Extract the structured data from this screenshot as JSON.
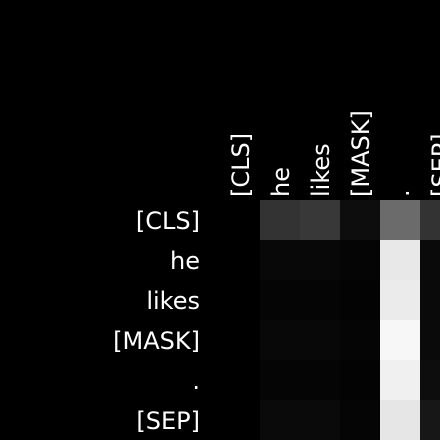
{
  "chart_data": {
    "type": "heatmap",
    "title": "",
    "xlabel": "",
    "ylabel": "",
    "x_tokens": [
      "[CLS]",
      "he",
      "likes",
      "[MASK]",
      ".",
      "[SEP]"
    ],
    "y_tokens": [
      "[CLS]",
      "he",
      "likes",
      "[MASK]",
      ".",
      "[SEP]"
    ],
    "colormap": "grayscale",
    "value_range": [
      0,
      1
    ],
    "values": [
      [
        0.0,
        0.2,
        0.22,
        0.05,
        0.42,
        0.2
      ],
      [
        0.0,
        0.03,
        0.03,
        0.02,
        0.91,
        0.04
      ],
      [
        0.0,
        0.02,
        0.02,
        0.01,
        0.92,
        0.04
      ],
      [
        0.0,
        0.03,
        0.03,
        0.02,
        0.97,
        0.04
      ],
      [
        0.0,
        0.02,
        0.02,
        0.01,
        0.94,
        0.05
      ],
      [
        0.0,
        0.04,
        0.04,
        0.02,
        0.9,
        0.09
      ]
    ],
    "grid": false,
    "legend": "none"
  },
  "colors": {
    "background": "#000000",
    "text": "#ffffff"
  }
}
